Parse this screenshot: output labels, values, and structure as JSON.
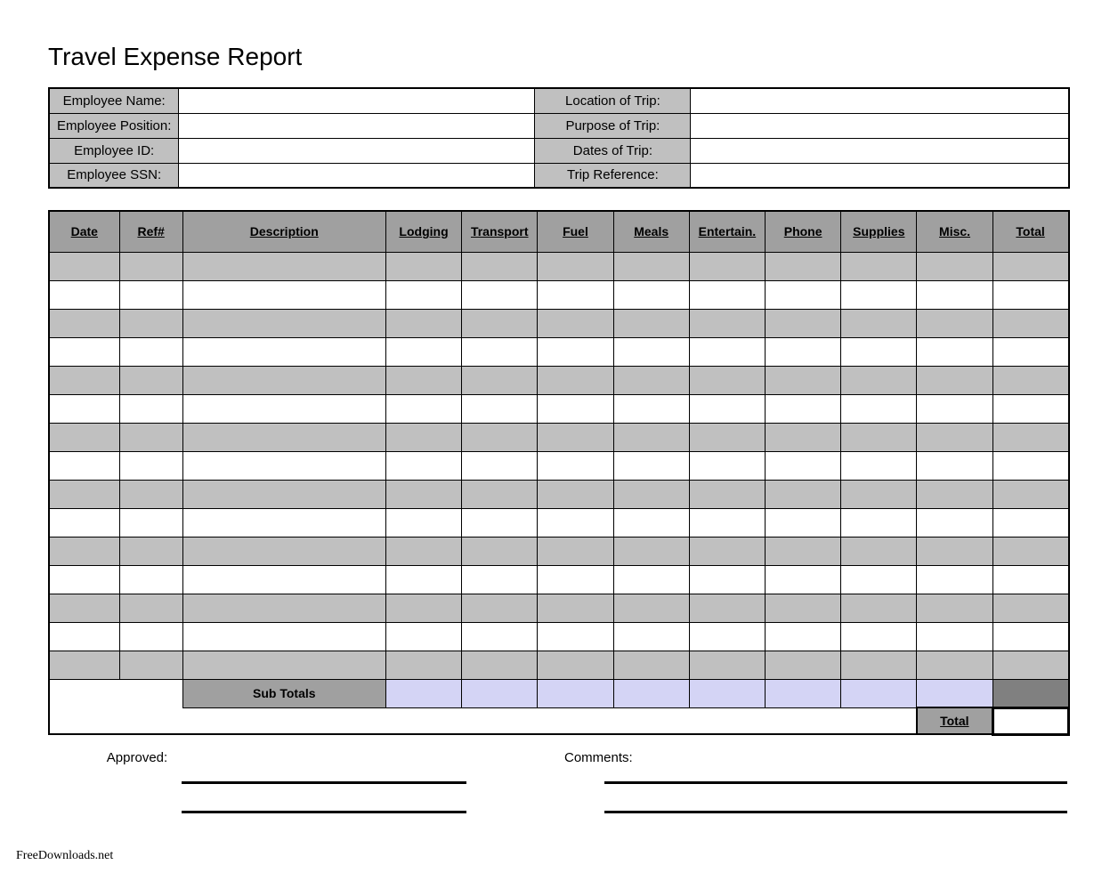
{
  "title": "Travel Expense Report",
  "info": {
    "left": [
      {
        "label": "Employee Name:",
        "value": ""
      },
      {
        "label": "Employee Position:",
        "value": ""
      },
      {
        "label": "Employee ID:",
        "value": ""
      },
      {
        "label": "Employee SSN:",
        "value": ""
      }
    ],
    "right": [
      {
        "label": "Location of Trip:",
        "value": ""
      },
      {
        "label": "Purpose of Trip:",
        "value": ""
      },
      {
        "label": "Dates of Trip:",
        "value": ""
      },
      {
        "label": "Trip Reference:",
        "value": ""
      }
    ]
  },
  "expense": {
    "columns": [
      "Date",
      "Ref#",
      "Description",
      "Lodging",
      "Transport",
      "Fuel",
      "Meals",
      "Entertain.",
      "Phone",
      "Supplies",
      "Misc.",
      "Total"
    ],
    "rows": [
      [
        "",
        "",
        "",
        "",
        "",
        "",
        "",
        "",
        "",
        "",
        "",
        ""
      ],
      [
        "",
        "",
        "",
        "",
        "",
        "",
        "",
        "",
        "",
        "",
        "",
        ""
      ],
      [
        "",
        "",
        "",
        "",
        "",
        "",
        "",
        "",
        "",
        "",
        "",
        ""
      ],
      [
        "",
        "",
        "",
        "",
        "",
        "",
        "",
        "",
        "",
        "",
        "",
        ""
      ],
      [
        "",
        "",
        "",
        "",
        "",
        "",
        "",
        "",
        "",
        "",
        "",
        ""
      ],
      [
        "",
        "",
        "",
        "",
        "",
        "",
        "",
        "",
        "",
        "",
        "",
        ""
      ],
      [
        "",
        "",
        "",
        "",
        "",
        "",
        "",
        "",
        "",
        "",
        "",
        ""
      ],
      [
        "",
        "",
        "",
        "",
        "",
        "",
        "",
        "",
        "",
        "",
        "",
        ""
      ],
      [
        "",
        "",
        "",
        "",
        "",
        "",
        "",
        "",
        "",
        "",
        "",
        ""
      ],
      [
        "",
        "",
        "",
        "",
        "",
        "",
        "",
        "",
        "",
        "",
        "",
        ""
      ],
      [
        "",
        "",
        "",
        "",
        "",
        "",
        "",
        "",
        "",
        "",
        "",
        ""
      ],
      [
        "",
        "",
        "",
        "",
        "",
        "",
        "",
        "",
        "",
        "",
        "",
        ""
      ],
      [
        "",
        "",
        "",
        "",
        "",
        "",
        "",
        "",
        "",
        "",
        "",
        ""
      ],
      [
        "",
        "",
        "",
        "",
        "",
        "",
        "",
        "",
        "",
        "",
        "",
        ""
      ],
      [
        "",
        "",
        "",
        "",
        "",
        "",
        "",
        "",
        "",
        "",
        "",
        ""
      ]
    ],
    "sub_totals_label": "Sub Totals",
    "sub_totals": [
      "",
      "",
      "",
      "",
      "",
      "",
      "",
      "",
      ""
    ],
    "grand_total_label": "Total",
    "grand_total": ""
  },
  "bottom": {
    "approved_label": "Approved:",
    "comments_label": "Comments:"
  },
  "footer": "FreeDownloads.net",
  "colors": {
    "header_gray": "#a0a0a0",
    "light_gray": "#c0c0c0",
    "subtotal_lavender": "#d4d4f5",
    "subtotal_dark": "#808080",
    "border": "#000000",
    "background": "#ffffff"
  }
}
